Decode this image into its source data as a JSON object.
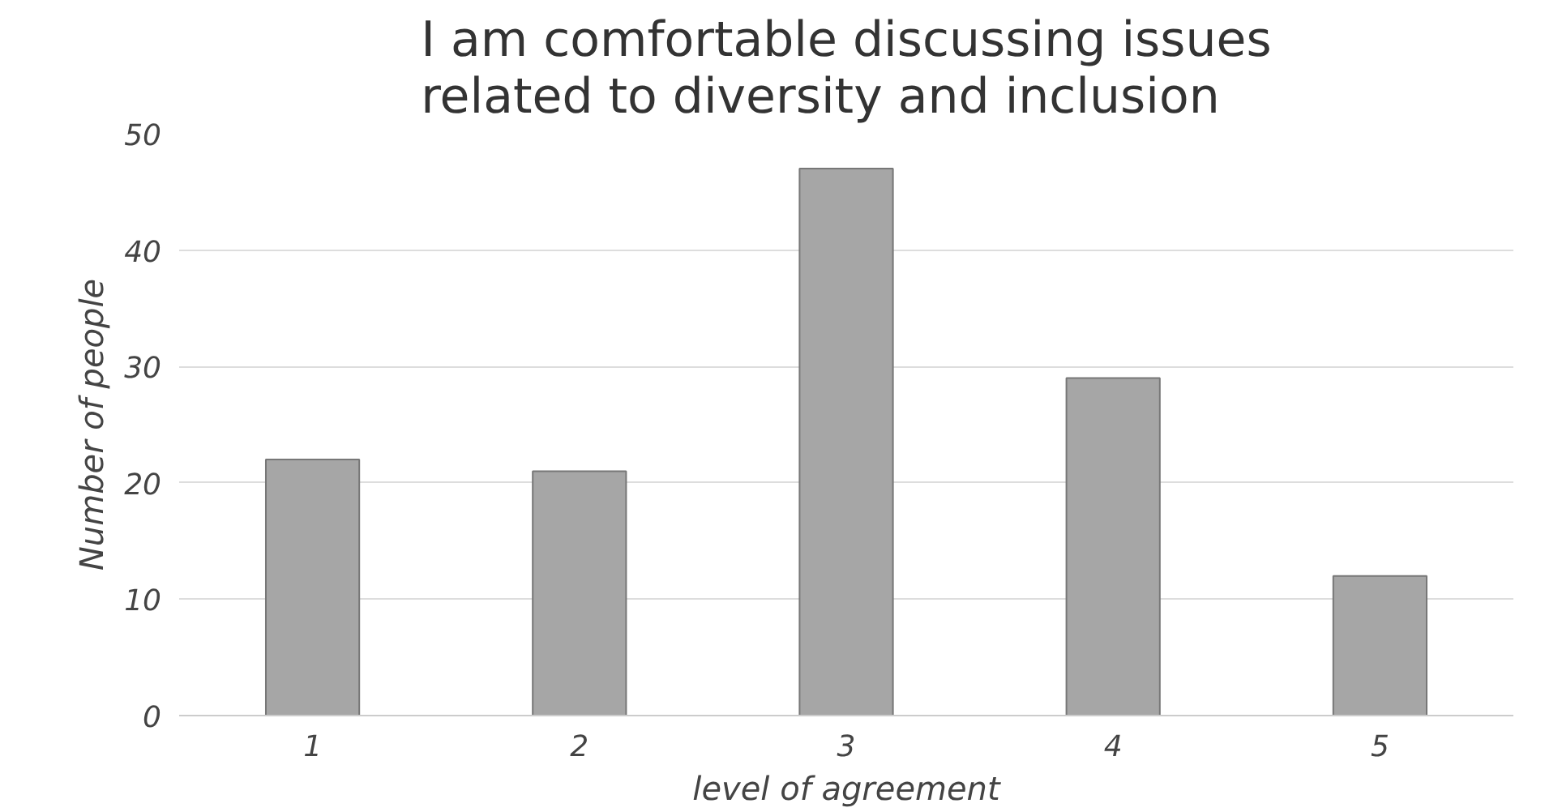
{
  "chart_data": {
    "type": "bar",
    "title": "I am comfortable discussing issues\nrelated to diversity and inclusion",
    "xlabel": "level of agreement",
    "ylabel": "Number of people",
    "categories": [
      "1",
      "2",
      "3",
      "4",
      "5"
    ],
    "values": [
      22,
      21,
      47,
      29,
      12
    ],
    "color": "#a6a6a6",
    "ylim": [
      0,
      50
    ],
    "yticks": [
      0,
      10,
      20,
      30,
      40,
      50
    ],
    "grid": "y"
  }
}
